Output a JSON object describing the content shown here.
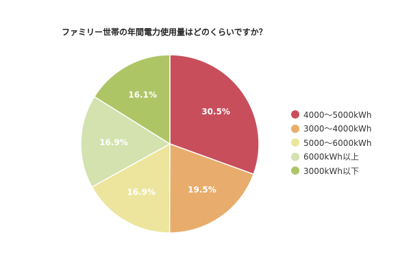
{
  "chart_data": {
    "type": "pie",
    "title": "ファミリー世帯の年間電力使用量はどのくらいですか？",
    "unit": "%",
    "legend_position": "right",
    "slices": [
      {
        "label": "4000〜5000kWh",
        "value": 30.5,
        "value_label": "30.5%",
        "color": "#c84e5c"
      },
      {
        "label": "3000〜4000kWh",
        "value": 19.5,
        "value_label": "19.5%",
        "color": "#e8ad6c"
      },
      {
        "label": "5000〜6000kWh",
        "value": 16.9,
        "value_label": "16.9%",
        "color": "#ede59e"
      },
      {
        "label": "6000kWh以上",
        "value": 16.9,
        "value_label": "16.9%",
        "color": "#d3e2ae"
      },
      {
        "label": "3000kWh以下",
        "value": 16.1,
        "value_label": "16.1%",
        "color": "#aec566"
      }
    ]
  }
}
